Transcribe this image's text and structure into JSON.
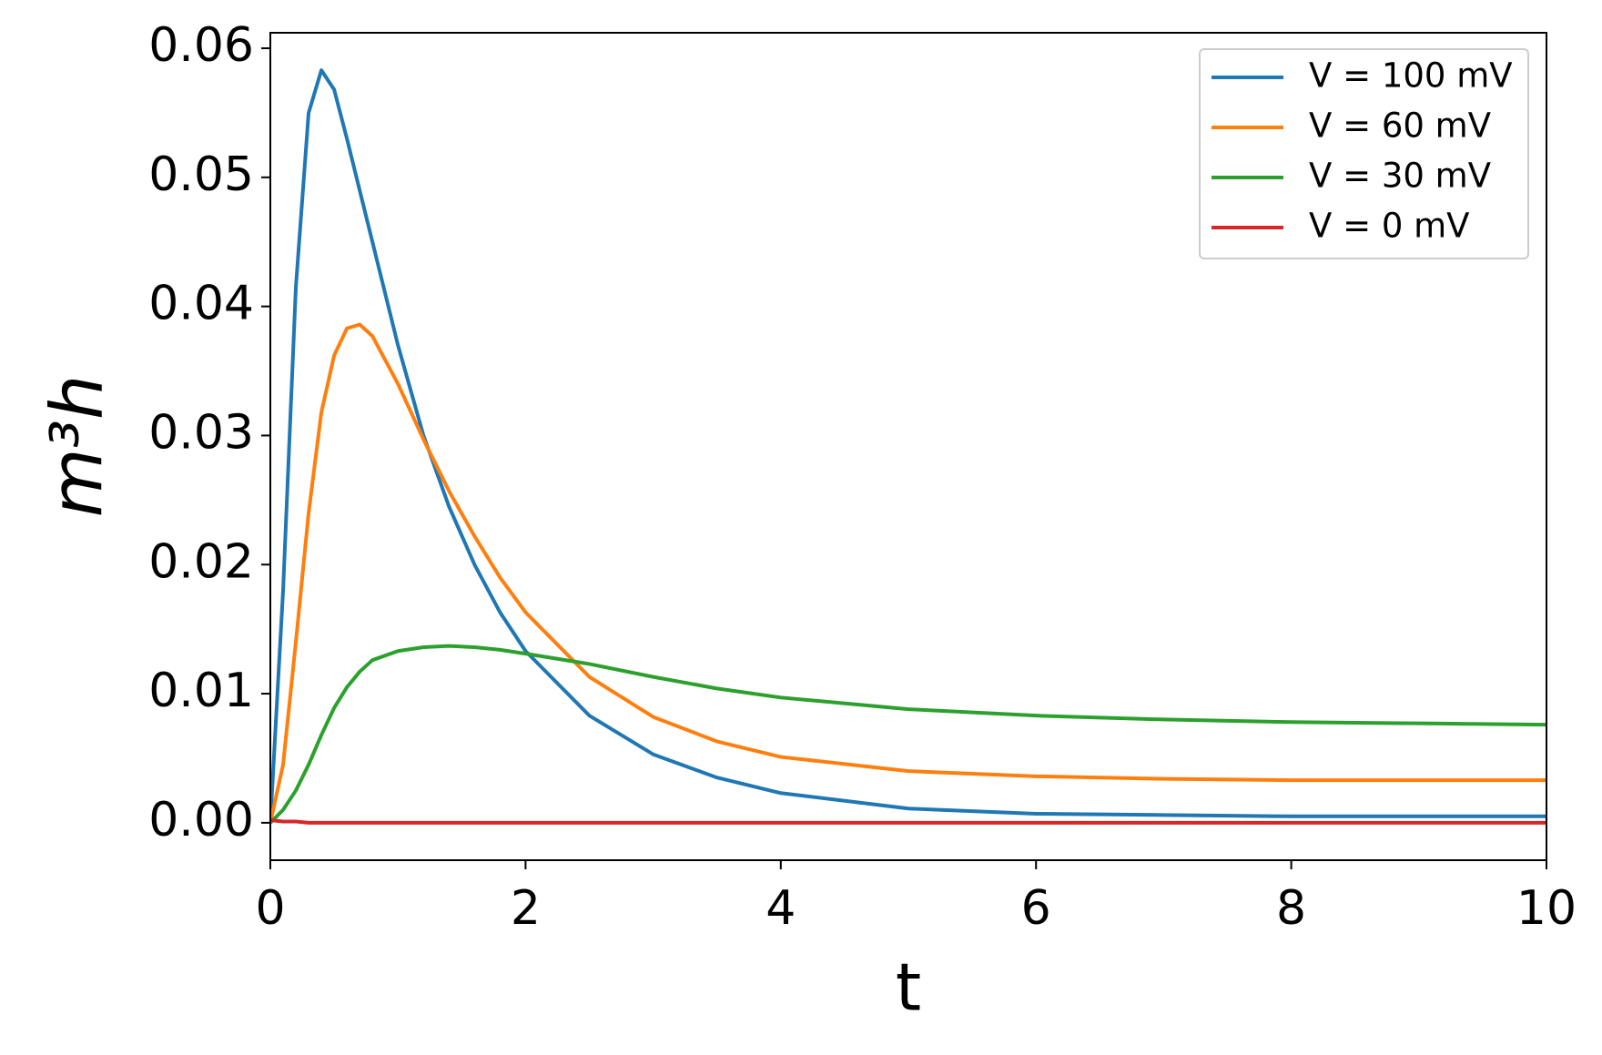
{
  "chart_data": {
    "type": "line",
    "xlabel": "t",
    "ylabel": "m³h",
    "x": [
      0,
      0.1,
      0.2,
      0.3,
      0.4,
      0.5,
      0.6,
      0.7,
      0.8,
      1,
      1.2,
      1.4,
      1.6,
      1.8,
      2,
      2.5,
      3,
      3.5,
      4,
      5,
      6,
      7,
      8,
      9,
      10
    ],
    "series": [
      {
        "name": "V = 100 mV",
        "color": "#1f77b4",
        "values": [
          0,
          0.018,
          0.0415,
          0.055,
          0.0583,
          0.0568,
          0.053,
          0.049,
          0.045,
          0.037,
          0.03,
          0.0245,
          0.02,
          0.0163,
          0.0133,
          0.0083,
          0.0053,
          0.0035,
          0.0023,
          0.0011,
          0.0007,
          0.0006,
          0.0005,
          0.0005,
          0.0005
        ]
      },
      {
        "name": "V = 60 mV",
        "color": "#ff7f0e",
        "values": [
          0,
          0.0045,
          0.014,
          0.024,
          0.0318,
          0.0362,
          0.0383,
          0.0386,
          0.0377,
          0.034,
          0.0297,
          0.0257,
          0.0222,
          0.019,
          0.0163,
          0.0113,
          0.0082,
          0.0063,
          0.0051,
          0.004,
          0.0036,
          0.0034,
          0.0033,
          0.0033,
          0.0033
        ]
      },
      {
        "name": "V = 30 mV",
        "color": "#2ca02c",
        "values": [
          0,
          0.001,
          0.0025,
          0.0045,
          0.0068,
          0.0089,
          0.0105,
          0.0117,
          0.0126,
          0.0133,
          0.0136,
          0.0137,
          0.0136,
          0.0134,
          0.0131,
          0.0123,
          0.0113,
          0.0104,
          0.0097,
          0.0088,
          0.0083,
          0.008,
          0.0078,
          0.0077,
          0.0076
        ]
      },
      {
        "name": "V = 0 mV",
        "color": "#d62728",
        "values": [
          0.0002,
          0.0001,
          0.0001,
          0,
          0,
          0,
          0,
          0,
          0,
          0,
          0,
          0,
          0,
          0,
          0,
          0,
          0,
          0,
          0,
          0,
          0,
          0,
          0,
          0,
          0
        ]
      }
    ],
    "xlim": [
      0,
      10
    ],
    "xticks": [
      0,
      2,
      4,
      6,
      8,
      10
    ],
    "ylim": [
      -0.0029,
      0.0612
    ],
    "yticks": [
      {
        "value": 0,
        "label": "0.00"
      },
      0.01,
      0.02,
      0.03,
      0.04,
      0.05,
      0.06
    ],
    "grid": false,
    "legend": "upper right"
  }
}
